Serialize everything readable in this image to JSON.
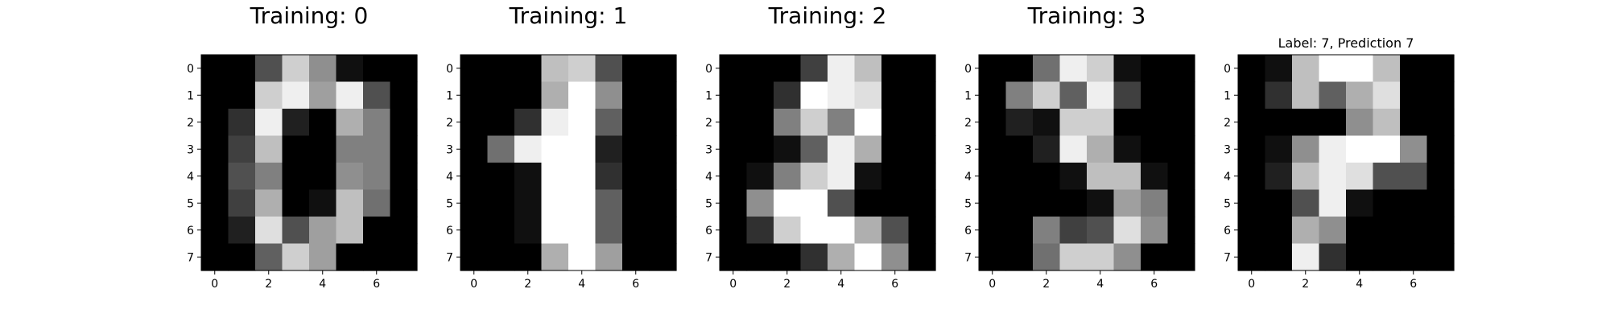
{
  "chart_data": [
    {
      "type": "heatmap",
      "title": "Training: 0",
      "colormap": "gray",
      "vmin": 0,
      "vmax": 16,
      "x_ticks": [
        0,
        2,
        4,
        6
      ],
      "y_ticks": [
        0,
        1,
        2,
        3,
        4,
        5,
        6,
        7
      ],
      "values": [
        [
          0,
          0,
          5,
          13,
          9,
          1,
          0,
          0
        ],
        [
          0,
          0,
          13,
          15,
          10,
          15,
          5,
          0
        ],
        [
          0,
          3,
          15,
          2,
          0,
          11,
          8,
          0
        ],
        [
          0,
          4,
          12,
          0,
          0,
          8,
          8,
          0
        ],
        [
          0,
          5,
          8,
          0,
          0,
          9,
          8,
          0
        ],
        [
          0,
          4,
          11,
          0,
          1,
          12,
          7,
          0
        ],
        [
          0,
          2,
          14,
          5,
          10,
          12,
          0,
          0
        ],
        [
          0,
          0,
          6,
          13,
          10,
          0,
          0,
          0
        ]
      ]
    },
    {
      "type": "heatmap",
      "title": "Training: 1",
      "colormap": "gray",
      "vmin": 0,
      "vmax": 16,
      "x_ticks": [
        0,
        2,
        4,
        6
      ],
      "y_ticks": [
        0,
        1,
        2,
        3,
        4,
        5,
        6,
        7
      ],
      "values": [
        [
          0,
          0,
          0,
          12,
          13,
          5,
          0,
          0
        ],
        [
          0,
          0,
          0,
          11,
          16,
          9,
          0,
          0
        ],
        [
          0,
          0,
          3,
          15,
          16,
          6,
          0,
          0
        ],
        [
          0,
          7,
          15,
          16,
          16,
          2,
          0,
          0
        ],
        [
          0,
          0,
          1,
          16,
          16,
          3,
          0,
          0
        ],
        [
          0,
          0,
          1,
          16,
          16,
          6,
          0,
          0
        ],
        [
          0,
          0,
          1,
          16,
          16,
          6,
          0,
          0
        ],
        [
          0,
          0,
          0,
          11,
          16,
          10,
          0,
          0
        ]
      ]
    },
    {
      "type": "heatmap",
      "title": "Training: 2",
      "colormap": "gray",
      "vmin": 0,
      "vmax": 16,
      "x_ticks": [
        0,
        2,
        4,
        6
      ],
      "y_ticks": [
        0,
        1,
        2,
        3,
        4,
        5,
        6,
        7
      ],
      "values": [
        [
          0,
          0,
          0,
          4,
          15,
          12,
          0,
          0
        ],
        [
          0,
          0,
          3,
          16,
          15,
          14,
          0,
          0
        ],
        [
          0,
          0,
          8,
          13,
          8,
          16,
          0,
          0
        ],
        [
          0,
          0,
          1,
          6,
          15,
          11,
          0,
          0
        ],
        [
          0,
          1,
          8,
          13,
          15,
          1,
          0,
          0
        ],
        [
          0,
          9,
          16,
          16,
          5,
          0,
          0,
          0
        ],
        [
          0,
          3,
          13,
          16,
          16,
          11,
          5,
          0
        ],
        [
          0,
          0,
          0,
          3,
          11,
          16,
          9,
          0
        ]
      ]
    },
    {
      "type": "heatmap",
      "title": "Training: 3",
      "colormap": "gray",
      "vmin": 0,
      "vmax": 16,
      "x_ticks": [
        0,
        2,
        4,
        6
      ],
      "y_ticks": [
        0,
        1,
        2,
        3,
        4,
        5,
        6,
        7
      ],
      "values": [
        [
          0,
          0,
          7,
          15,
          13,
          1,
          0,
          0
        ],
        [
          0,
          8,
          13,
          6,
          15,
          4,
          0,
          0
        ],
        [
          0,
          2,
          1,
          13,
          13,
          0,
          0,
          0
        ],
        [
          0,
          0,
          2,
          15,
          11,
          1,
          0,
          0
        ],
        [
          0,
          0,
          0,
          1,
          12,
          12,
          1,
          0
        ],
        [
          0,
          0,
          0,
          0,
          1,
          10,
          8,
          0
        ],
        [
          0,
          0,
          8,
          4,
          5,
          14,
          9,
          0
        ],
        [
          0,
          0,
          7,
          13,
          13,
          9,
          0,
          0
        ]
      ]
    },
    {
      "type": "heatmap",
      "title": "Label: 7, Prediction 7",
      "colormap": "gray",
      "vmin": 0,
      "vmax": 16,
      "x_ticks": [
        0,
        2,
        4,
        6
      ],
      "y_ticks": [
        0,
        1,
        2,
        3,
        4,
        5,
        6,
        7
      ],
      "values": [
        [
          0,
          1,
          12,
          16,
          16,
          12,
          0,
          0
        ],
        [
          0,
          3,
          12,
          6,
          11,
          14,
          0,
          0
        ],
        [
          0,
          0,
          0,
          0,
          9,
          12,
          0,
          0
        ],
        [
          0,
          1,
          9,
          15,
          16,
          16,
          9,
          0
        ],
        [
          0,
          2,
          12,
          15,
          14,
          5,
          5,
          0
        ],
        [
          0,
          0,
          5,
          15,
          1,
          0,
          0,
          0
        ],
        [
          0,
          0,
          11,
          9,
          0,
          0,
          0,
          0
        ],
        [
          0,
          0,
          15,
          3,
          0,
          0,
          0,
          0
        ]
      ]
    }
  ]
}
